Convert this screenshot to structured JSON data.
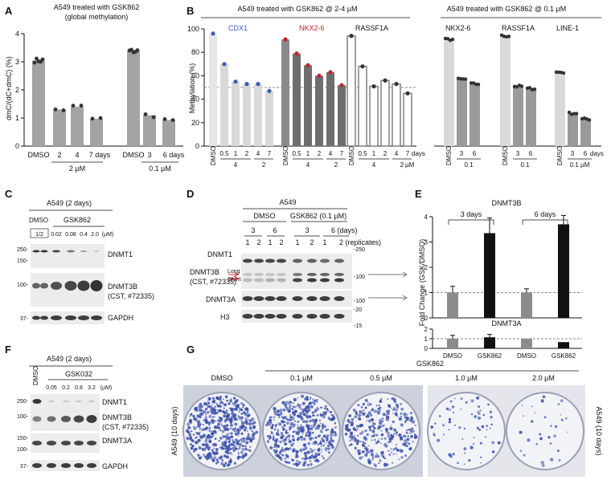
{
  "panels": {
    "A": "A",
    "B": "B",
    "C": "C",
    "D": "D",
    "E": "E",
    "F": "F",
    "G": "G"
  },
  "colors": {
    "bar_gray": "#a3a3a3",
    "bar_light": "#d9d9d9",
    "bar_dark": "#6e6e6e",
    "bar_black": "#111111",
    "dot": "#333333",
    "cdx1": "#3b5bb5",
    "nkx": "#c8202a",
    "blot_bg": "#ececec",
    "band": "#2a2a2a",
    "dish": "#3c50a8"
  },
  "panelA": {
    "title_line1": "A549 treated with GSK862",
    "title_line2": "(global methylation)",
    "treat_labels": [
      "DMSO",
      "2",
      "4",
      "7 days",
      "3",
      "6 days"
    ],
    "group_labels": [
      "2 µM",
      "0.1 µM"
    ],
    "chart_data": {
      "type": "bar",
      "categories": [
        "DMSO",
        "2 µM 2 days",
        "2 µM 4 days",
        "2 µM 7 days",
        "DMSO",
        "0.1 µM 3 days",
        "0.1 µM 6 days"
      ],
      "values": [
        3.05,
        1.3,
        1.4,
        0.97,
        3.38,
        1.1,
        0.93
      ],
      "ylabel": "dmC/(dC+dmC) (%)",
      "yticks": [
        "0",
        "1",
        "2",
        "3",
        "4"
      ],
      "ylim": [
        0,
        4
      ],
      "title": "A549 treated with GSK862 (global methylation)"
    }
  },
  "panelB": {
    "title_left": "A549 treated with GSK862 @ 2-4 µM",
    "title_right": "A549 treated with GSK862 @ 0.1 µM",
    "gene_labels_left": [
      "CDX1",
      "NKX2-6",
      "RASSF1A"
    ],
    "gene_labels_right": [
      "NKX2-6",
      "RASSF1A",
      "LINE-1"
    ],
    "x_left": [
      "DMSO",
      "0.5",
      "1",
      "2",
      "4",
      "7"
    ],
    "x_left_sub": [
      "4",
      "2",
      "4",
      "2",
      "4",
      "2"
    ],
    "x_days": "days",
    "x_right": [
      "DMSO",
      "3",
      "6",
      "3",
      "6",
      "3",
      "6"
    ],
    "x_right_sub": [
      "0.1",
      "0.1",
      "0.1 µM"
    ],
    "chart_data": {
      "type": "bar",
      "ylabel": "Methylation (%)",
      "yticks": [
        "0",
        "20",
        "40",
        "60",
        "80",
        "100"
      ],
      "ylim": [
        0,
        100
      ],
      "reference_line": 50,
      "categories_left": [
        "DMSO",
        "0.5 d 4 µM",
        "1 d 4 µM",
        "2 d 4 µM",
        "4 d 2 µM",
        "7 d 2 µM"
      ],
      "series_left": [
        {
          "name": "CDX1",
          "values": [
            96,
            70,
            55,
            53,
            53,
            47
          ]
        },
        {
          "name": "NKX2-6",
          "values": [
            91,
            79,
            69,
            60,
            63,
            52
          ]
        },
        {
          "name": "RASSF1A",
          "values": [
            94,
            68,
            51,
            56,
            53,
            45
          ]
        }
      ],
      "categories_right": [
        "DMSO",
        "3 days",
        "6 days"
      ],
      "series_right": [
        {
          "name": "NKX2-6",
          "values": [
            91,
            57,
            53
          ]
        },
        {
          "name": "RASSF1A",
          "values": [
            94,
            51,
            49
          ]
        },
        {
          "name": "LINE-1",
          "values": [
            63,
            28,
            23
          ]
        }
      ]
    }
  },
  "panelC": {
    "title": "A549 (2 days)",
    "dmso": "DMSO",
    "drug": "GSK862",
    "rep": "1/2",
    "conc": [
      "0.02",
      "0.08",
      "0.4",
      "2.0",
      "(µM)"
    ],
    "mw": [
      "250-",
      "150-",
      "100-",
      "37-"
    ],
    "labels": [
      "DNMT1",
      "DNMT3B",
      "(CST, #72335)",
      "GAPDH"
    ]
  },
  "panelD": {
    "title": "A549",
    "dmso": "DMSO",
    "drug": "GSK862 (0.1 µM)",
    "days": [
      "3",
      "6",
      "3",
      "6 (days)"
    ],
    "reps": [
      "1",
      "2",
      "1",
      "2",
      "1",
      "2",
      "1",
      "2 (replicates)"
    ],
    "left_labels": [
      "DNMT1",
      "DNMT3B",
      "(CST, #72335)",
      "DNMT3A",
      "H3"
    ],
    "long_short": [
      "Long",
      "Short"
    ],
    "mw": [
      "-250",
      "-100",
      "-100",
      "-20",
      "-15"
    ]
  },
  "panelE": {
    "title_top": "DNMT3B",
    "title_bottom": "DNMT3A",
    "day_labels": [
      "3 days",
      "6 days"
    ],
    "x_labels": [
      "DMSO",
      "GSK862",
      "DMSO",
      "GSK862"
    ],
    "ylabel": "Fold Change (GSK/DMSO)",
    "yticks_top": [
      "0",
      "1",
      "2",
      "3",
      "4"
    ],
    "yticks_bottom": [
      "0",
      "1",
      "2"
    ],
    "chart_data": [
      {
        "type": "bar",
        "title": "DNMT3B",
        "categories": [
          "DMSO 3d",
          "GSK862 3d",
          "DMSO 6d",
          "GSK862 6d"
        ],
        "values": [
          1.0,
          3.35,
          1.0,
          3.7
        ],
        "errors": [
          0.25,
          0.6,
          0.15,
          0.35
        ],
        "ylim": [
          0,
          4
        ]
      },
      {
        "type": "bar",
        "title": "DNMT3A",
        "categories": [
          "DMSO 3d",
          "GSK862 3d",
          "DMSO 6d",
          "GSK862 6d"
        ],
        "values": [
          1.0,
          1.15,
          1.0,
          0.65
        ],
        "errors": [
          0.35,
          0.3,
          0.0,
          0.0
        ],
        "ylim": [
          0,
          2
        ]
      }
    ]
  },
  "panelF": {
    "title": "A549 (2 days)",
    "dmso": "DMSO",
    "drug": "GSK032",
    "conc": [
      "0.05",
      "0.2",
      "0.8",
      "3.2",
      "(µM)"
    ],
    "mw": [
      "250-",
      "100-",
      "150-",
      "100-",
      "37-"
    ],
    "labels": [
      "DNMT1",
      "DNMT3B",
      "(CST, #72335)",
      "DNMT3A",
      "GAPDH"
    ]
  },
  "panelG": {
    "drug": "GSK862",
    "conds": [
      "DMSO",
      "0.1 µM",
      "0.5 µM",
      "1.0 µM",
      "2.0 µM"
    ],
    "side": "A549 (10 days)",
    "density": [
      1.0,
      0.9,
      0.6,
      0.12,
      0.06
    ]
  }
}
